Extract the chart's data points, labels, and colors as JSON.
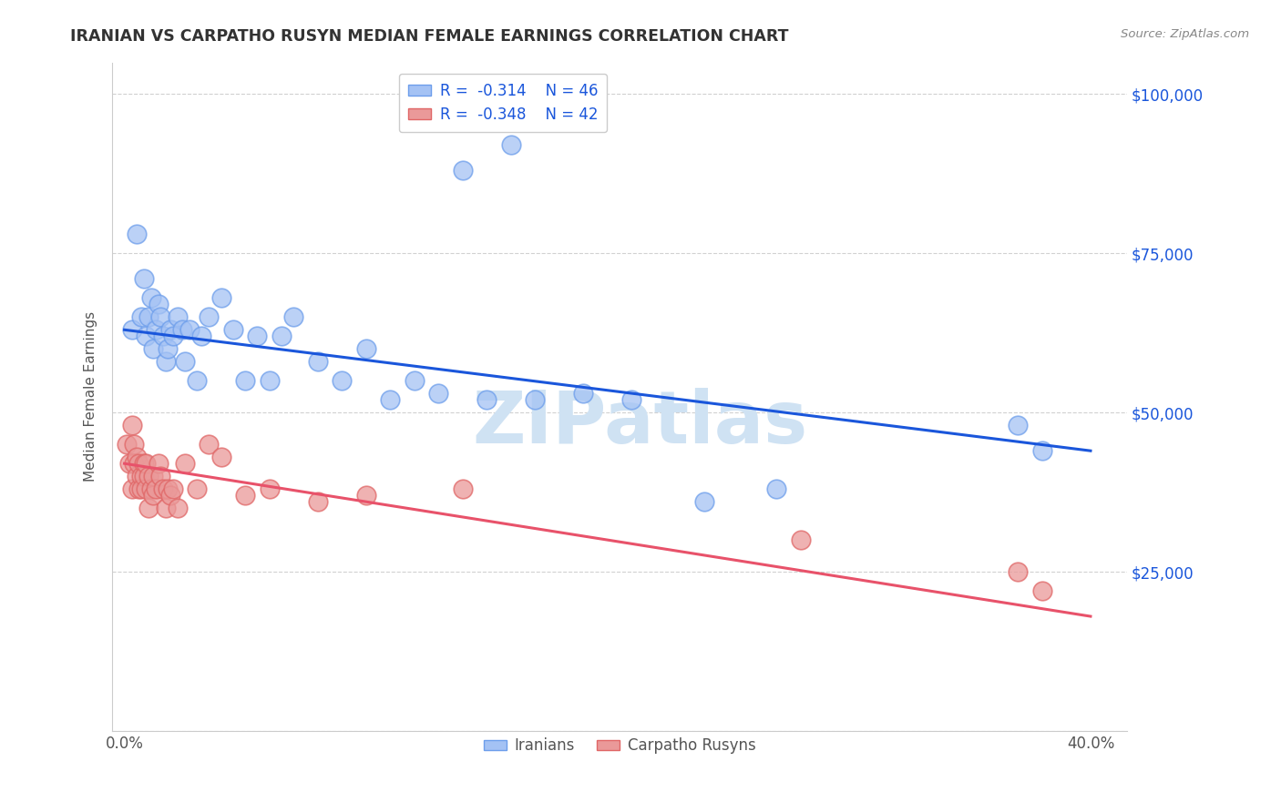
{
  "title": "IRANIAN VS CARPATHO RUSYN MEDIAN FEMALE EARNINGS CORRELATION CHART",
  "source": "Source: ZipAtlas.com",
  "ylabel": "Median Female Earnings",
  "xlim": [
    -0.005,
    0.415
  ],
  "ylim": [
    0,
    105000
  ],
  "blue_R": "-0.314",
  "blue_N": "46",
  "pink_R": "-0.348",
  "pink_N": "42",
  "blue_color": "#a4c2f4",
  "blue_edge_color": "#6d9eeb",
  "pink_color": "#ea9999",
  "pink_edge_color": "#e06666",
  "blue_line_color": "#1a56db",
  "pink_line_color": "#e8526a",
  "background_color": "#ffffff",
  "grid_color": "#cccccc",
  "watermark_color": "#cfe2f3",
  "iranians_x": [
    0.003,
    0.005,
    0.007,
    0.008,
    0.009,
    0.01,
    0.011,
    0.012,
    0.013,
    0.014,
    0.015,
    0.016,
    0.017,
    0.018,
    0.019,
    0.02,
    0.022,
    0.024,
    0.025,
    0.027,
    0.03,
    0.032,
    0.035,
    0.04,
    0.045,
    0.05,
    0.055,
    0.06,
    0.065,
    0.07,
    0.08,
    0.09,
    0.1,
    0.11,
    0.12,
    0.13,
    0.15,
    0.17,
    0.19,
    0.21,
    0.24,
    0.27,
    0.37,
    0.38,
    0.14,
    0.16
  ],
  "iranians_y": [
    63000,
    78000,
    65000,
    71000,
    62000,
    65000,
    68000,
    60000,
    63000,
    67000,
    65000,
    62000,
    58000,
    60000,
    63000,
    62000,
    65000,
    63000,
    58000,
    63000,
    55000,
    62000,
    65000,
    68000,
    63000,
    55000,
    62000,
    55000,
    62000,
    65000,
    58000,
    55000,
    60000,
    52000,
    55000,
    53000,
    52000,
    52000,
    53000,
    52000,
    36000,
    38000,
    48000,
    44000,
    88000,
    92000
  ],
  "rusyns_x": [
    0.001,
    0.002,
    0.003,
    0.003,
    0.004,
    0.004,
    0.005,
    0.005,
    0.006,
    0.006,
    0.007,
    0.007,
    0.008,
    0.008,
    0.009,
    0.009,
    0.01,
    0.01,
    0.011,
    0.012,
    0.012,
    0.013,
    0.014,
    0.015,
    0.016,
    0.017,
    0.018,
    0.019,
    0.02,
    0.022,
    0.025,
    0.03,
    0.035,
    0.04,
    0.05,
    0.06,
    0.08,
    0.1,
    0.14,
    0.28,
    0.37,
    0.38
  ],
  "rusyns_y": [
    45000,
    42000,
    38000,
    48000,
    42000,
    45000,
    40000,
    43000,
    38000,
    42000,
    40000,
    38000,
    42000,
    40000,
    38000,
    42000,
    40000,
    35000,
    38000,
    40000,
    37000,
    38000,
    42000,
    40000,
    38000,
    35000,
    38000,
    37000,
    38000,
    35000,
    42000,
    38000,
    45000,
    43000,
    37000,
    38000,
    36000,
    37000,
    38000,
    30000,
    25000,
    22000
  ],
  "blue_trendline_x": [
    0.0,
    0.4
  ],
  "blue_trendline_y": [
    63000,
    44000
  ],
  "pink_trendline_x": [
    0.0,
    0.4
  ],
  "pink_trendline_y": [
    42000,
    18000
  ]
}
